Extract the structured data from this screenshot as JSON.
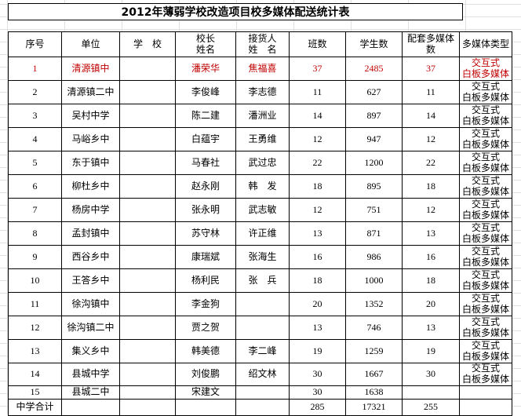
{
  "title": "2012年薄弱学校改造项目校多媒体配送统计表",
  "colors": {
    "accent_red": "#c00000",
    "table_border": "#000000",
    "sheet_gridline": "#e0e0e0"
  },
  "table": {
    "column_keys": [
      "no",
      "unit",
      "school",
      "principal",
      "receiver",
      "classes",
      "students",
      "media",
      "type"
    ],
    "headers": [
      "序号",
      "单位",
      "学　校",
      "校长\n姓名",
      "接货人\n姓　名",
      "班数",
      "学生数",
      "配套多媒体\n数",
      "多媒体类型"
    ],
    "rows": [
      {
        "highlight": true,
        "cells": {
          "no": "1",
          "unit": "清源镇中",
          "school": "",
          "principal": "潘荣华",
          "receiver": "焦福喜",
          "classes": "37",
          "students": "2485",
          "media": "37",
          "type": "交互式\n白板多媒体"
        }
      },
      {
        "highlight": false,
        "cells": {
          "no": "2",
          "unit": "清源镇二中",
          "school": "",
          "principal": "李俊峰",
          "receiver": "李志德",
          "classes": "11",
          "students": "627",
          "media": "11",
          "type": "交互式\n白板多媒体"
        }
      },
      {
        "highlight": false,
        "cells": {
          "no": "3",
          "unit": "吴村中学",
          "school": "",
          "principal": "陈二建",
          "receiver": "潘洲业",
          "classes": "14",
          "students": "897",
          "media": "14",
          "type": "交互式\n白板多媒体"
        }
      },
      {
        "highlight": false,
        "cells": {
          "no": "4",
          "unit": "马峪乡中",
          "school": "",
          "principal": "白蕴宇",
          "receiver": "王勇维",
          "classes": "12",
          "students": "947",
          "media": "12",
          "type": "交互式\n白板多媒体"
        }
      },
      {
        "highlight": false,
        "cells": {
          "no": "5",
          "unit": "东于镇中",
          "school": "",
          "principal": "马春社",
          "receiver": "武过忠",
          "classes": "22",
          "students": "1200",
          "media": "22",
          "type": "交互式\n白板多媒体"
        }
      },
      {
        "highlight": false,
        "cells": {
          "no": "6",
          "unit": "柳杜乡中",
          "school": "",
          "principal": "赵永刚",
          "receiver": "韩　发",
          "classes": "18",
          "students": "895",
          "media": "18",
          "type": "交互式\n白板多媒体"
        }
      },
      {
        "highlight": false,
        "cells": {
          "no": "7",
          "unit": "杨房中学",
          "school": "",
          "principal": "张永明",
          "receiver": "武志敏",
          "classes": "12",
          "students": "751",
          "media": "12",
          "type": "交互式\n白板多媒体"
        }
      },
      {
        "highlight": false,
        "cells": {
          "no": "8",
          "unit": "孟封镇中",
          "school": "",
          "principal": "苏守林",
          "receiver": "许正维",
          "classes": "13",
          "students": "871",
          "media": "13",
          "type": "交互式\n白板多媒体"
        }
      },
      {
        "highlight": false,
        "cells": {
          "no": "9",
          "unit": "西谷乡中",
          "school": "",
          "principal": "康瑞斌",
          "receiver": "张海生",
          "classes": "16",
          "students": "986",
          "media": "16",
          "type": "交互式\n白板多媒体"
        }
      },
      {
        "highlight": false,
        "cells": {
          "no": "10",
          "unit": "王答乡中",
          "school": "",
          "principal": "杨利民",
          "receiver": "张　兵",
          "classes": "18",
          "students": "1000",
          "media": "18",
          "type": "交互式\n白板多媒体"
        }
      },
      {
        "highlight": false,
        "cells": {
          "no": "11",
          "unit": "徐沟镇中",
          "school": "",
          "principal": "李金狗",
          "receiver": "",
          "classes": "20",
          "students": "1352",
          "media": "20",
          "type": "交互式\n白板多媒体"
        }
      },
      {
        "highlight": false,
        "cells": {
          "no": "12",
          "unit": "徐沟镇二中",
          "school": "",
          "principal": "贾之贺",
          "receiver": "",
          "classes": "13",
          "students": "746",
          "media": "13",
          "type": "交互式\n白板多媒体"
        }
      },
      {
        "highlight": false,
        "cells": {
          "no": "13",
          "unit": "集义乡中",
          "school": "",
          "principal": "韩美德",
          "receiver": "李二峰",
          "classes": "19",
          "students": "1259",
          "media": "19",
          "type": "交互式\n白板多媒体"
        }
      },
      {
        "highlight": false,
        "cells": {
          "no": "14",
          "unit": "县城中学",
          "school": "",
          "principal": "刘俊鹏",
          "receiver": "绍文林",
          "classes": "30",
          "students": "1667",
          "media": "30",
          "type": "交互式\n白板多媒体"
        }
      },
      {
        "highlight": false,
        "cells": {
          "no": "15",
          "unit": "县城二中",
          "school": "",
          "principal": "宋建文",
          "receiver": "",
          "classes": "30",
          "students": "1638",
          "media": "",
          "type": ""
        }
      },
      {
        "highlight": false,
        "is_summary": true,
        "cells": {
          "no": "中学合计",
          "unit": "",
          "school": "",
          "principal": "",
          "receiver": "",
          "classes": "285",
          "students": "17321",
          "media": "255",
          "type": ""
        }
      }
    ]
  }
}
